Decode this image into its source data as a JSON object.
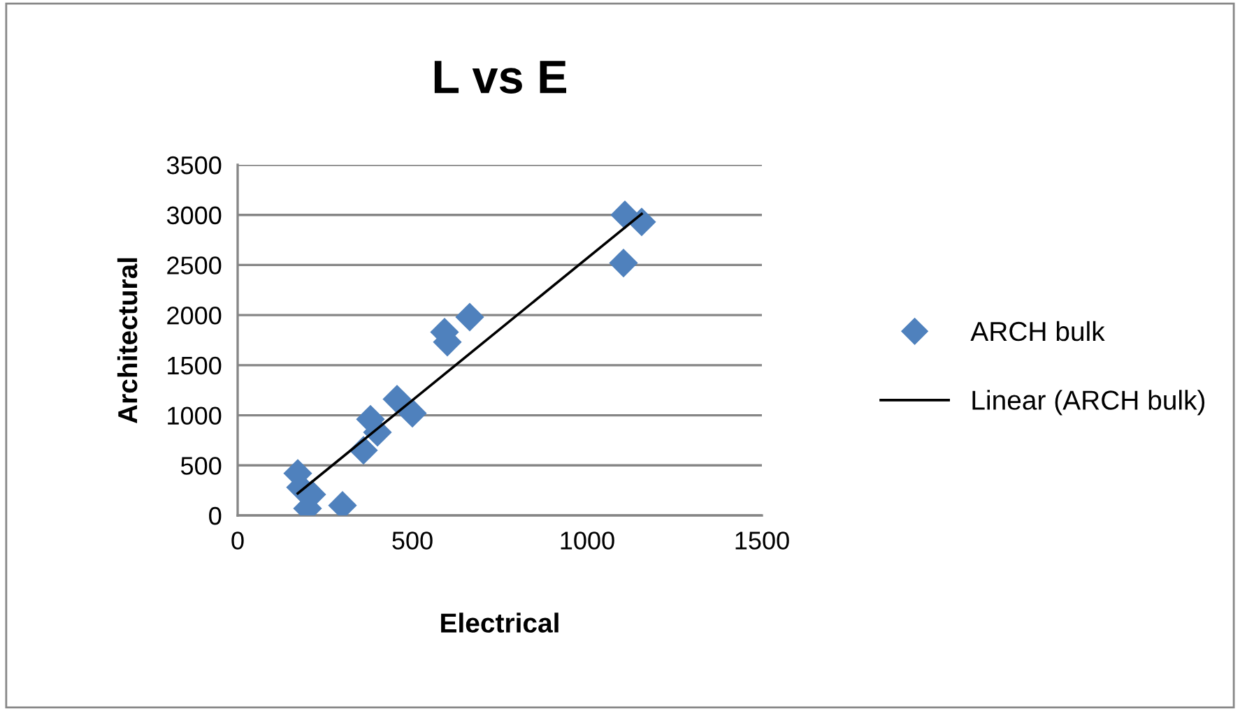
{
  "chart_data": {
    "type": "scatter",
    "title": "L vs E",
    "xlabel": "Electrical",
    "ylabel": "Architectural",
    "xlim": [
      0,
      1500
    ],
    "xticks": [
      0,
      500,
      1000,
      1500
    ],
    "ylim": [
      0,
      3500
    ],
    "yticks": [
      0,
      500,
      1000,
      1500,
      2000,
      2500,
      3000,
      3500
    ],
    "grid": "y",
    "legend": "right",
    "marker": "diamond",
    "series": [
      {
        "name": "ARCH bulk",
        "color": "#4f81bd",
        "x": [
          172,
          180,
          212,
          200,
          300,
          380,
          400,
          360,
          456,
          500,
          592,
          600,
          664,
          1108,
          1156,
          1104
        ],
        "values": [
          420,
          280,
          210,
          70,
          100,
          960,
          830,
          650,
          1160,
          1020,
          1830,
          1730,
          1980,
          3000,
          2930,
          2520
        ]
      },
      {
        "name": "Linear (ARCH bulk)",
        "type": "line",
        "color": "#000000",
        "marker": "none",
        "line_style": "solid",
        "x": [
          172,
          1156
        ],
        "values": [
          220,
          3010
        ]
      }
    ]
  }
}
